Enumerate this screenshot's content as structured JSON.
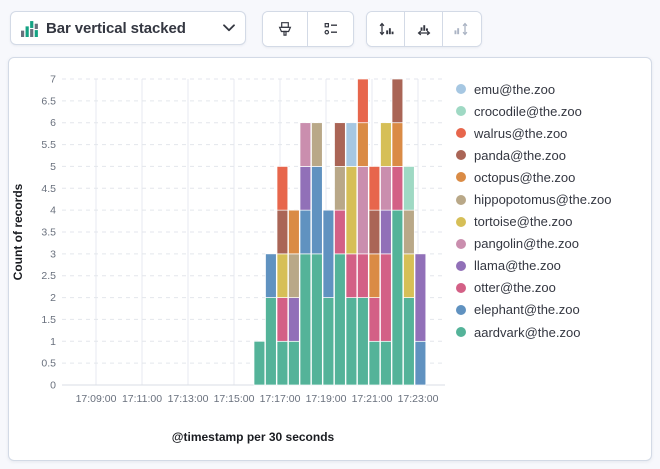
{
  "toolbar": {
    "chart_type_label": "Bar vertical stacked",
    "buttons": {
      "visual_options": "visual-options",
      "legend": "legend-settings",
      "left_axis": "left-axis",
      "bottom_axis": "bottom-axis",
      "right_axis": "right-axis"
    }
  },
  "legend": {
    "items": [
      {
        "label": "emu@the.zoo",
        "color": "#A6C7E2"
      },
      {
        "label": "crocodile@the.zoo",
        "color": "#9FD9C4"
      },
      {
        "label": "walrus@the.zoo",
        "color": "#E7664C"
      },
      {
        "label": "panda@the.zoo",
        "color": "#AA6556"
      },
      {
        "label": "octopus@the.zoo",
        "color": "#DA8B45"
      },
      {
        "label": "hippopotomus@the.zoo",
        "color": "#B9A888"
      },
      {
        "label": "tortoise@the.zoo",
        "color": "#D6BF57"
      },
      {
        "label": "pangolin@the.zoo",
        "color": "#CA8EAE"
      },
      {
        "label": "llama@the.zoo",
        "color": "#9170B8"
      },
      {
        "label": "otter@the.zoo",
        "color": "#D36086"
      },
      {
        "label": "elephant@the.zoo",
        "color": "#6092C0"
      },
      {
        "label": "aardvark@the.zoo",
        "color": "#54B399"
      }
    ]
  },
  "chart_data": {
    "type": "bar",
    "stacked": true,
    "title": "",
    "xlabel": "@timestamp per 30 seconds",
    "ylabel": "Count of records",
    "ylim": [
      0,
      7
    ],
    "y_tick_step": 0.5,
    "y_tick_labels": [
      "0",
      "0.5",
      "1",
      "1.5",
      "2",
      "2.5",
      "3",
      "3.5",
      "4",
      "4.5",
      "5",
      "5.5",
      "6",
      "6.5",
      "7"
    ],
    "x_tick_labels": [
      "17:09:00",
      "17:11:00",
      "17:13:00",
      "17:15:00",
      "17:17:00",
      "17:19:00",
      "17:21:00",
      "17:23:00"
    ],
    "x_domain": [
      "17:08:00",
      "17:24:00"
    ],
    "bucket_seconds": 30,
    "grid": true,
    "legend_position": "right",
    "categories": [
      "17:16:00",
      "17:16:30",
      "17:17:00",
      "17:17:30",
      "17:18:00",
      "17:18:30",
      "17:19:00",
      "17:19:30",
      "17:20:00",
      "17:20:30",
      "17:21:00",
      "17:21:30",
      "17:22:00",
      "17:22:30",
      "17:23:00"
    ],
    "series": [
      {
        "name": "aardvark@the.zoo",
        "color": "#54B399",
        "values": [
          1,
          2,
          1,
          1,
          3,
          3,
          2,
          3,
          2,
          2,
          1,
          1,
          4,
          2,
          0
        ]
      },
      {
        "name": "elephant@the.zoo",
        "color": "#6092C0",
        "values": [
          0,
          1,
          0,
          0,
          1,
          2,
          2,
          0,
          0,
          0,
          0,
          0,
          0,
          0,
          1
        ]
      },
      {
        "name": "otter@the.zoo",
        "color": "#D36086",
        "values": [
          0,
          0,
          1,
          0,
          0,
          0,
          0,
          1,
          1,
          1,
          1,
          2,
          1,
          0,
          0
        ]
      },
      {
        "name": "llama@the.zoo",
        "color": "#9170B8",
        "values": [
          0,
          0,
          0,
          1,
          1,
          0,
          0,
          0,
          0,
          0,
          0,
          1,
          0,
          0,
          2
        ]
      },
      {
        "name": "pangolin@the.zoo",
        "color": "#CA8EAE",
        "values": [
          0,
          0,
          0,
          0,
          1,
          0,
          0,
          0,
          0,
          2,
          0,
          1,
          0,
          0,
          0
        ]
      },
      {
        "name": "tortoise@the.zoo",
        "color": "#D6BF57",
        "values": [
          0,
          0,
          1,
          0,
          0,
          0,
          0,
          0,
          2,
          0,
          0,
          1,
          0,
          1,
          0
        ]
      },
      {
        "name": "hippopotomus@the.zoo",
        "color": "#B9A888",
        "values": [
          0,
          0,
          0,
          1,
          0,
          1,
          0,
          1,
          0,
          0,
          0,
          0,
          0,
          1,
          0
        ]
      },
      {
        "name": "octopus@the.zoo",
        "color": "#DA8B45",
        "values": [
          0,
          0,
          0,
          1,
          0,
          0,
          0,
          0,
          0,
          1,
          1,
          0,
          1,
          0,
          0
        ]
      },
      {
        "name": "panda@the.zoo",
        "color": "#AA6556",
        "values": [
          0,
          0,
          1,
          0,
          0,
          0,
          0,
          1,
          0,
          0,
          1,
          0,
          1,
          0,
          0
        ]
      },
      {
        "name": "walrus@the.zoo",
        "color": "#E7664C",
        "values": [
          0,
          0,
          1,
          0,
          0,
          0,
          0,
          0,
          0,
          1,
          1,
          0,
          0,
          0,
          0
        ]
      },
      {
        "name": "crocodile@the.zoo",
        "color": "#9FD9C4",
        "values": [
          0,
          0,
          0,
          0,
          0,
          0,
          0,
          0,
          0,
          0,
          0,
          0,
          0,
          1,
          0
        ]
      },
      {
        "name": "emu@the.zoo",
        "color": "#A6C7E2",
        "values": [
          0,
          0,
          0,
          0,
          0,
          0,
          0,
          0,
          1,
          0,
          0,
          0,
          0,
          0,
          0
        ]
      }
    ]
  }
}
